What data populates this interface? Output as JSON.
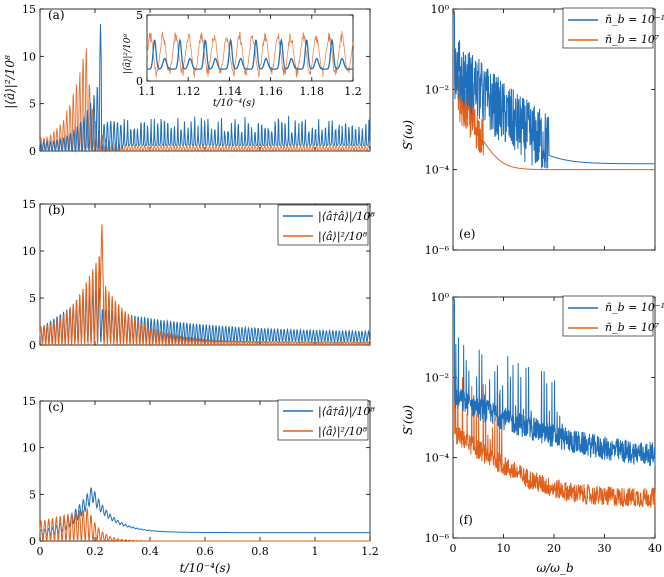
{
  "colors": {
    "blue": "#1f6fba",
    "orange": "#e0601c",
    "axis": "#000000"
  },
  "chart_data": [
    {
      "id": "a",
      "type": "line",
      "panel_label": "(a)",
      "ylabel": "|⟨â⟩|²/10⁸",
      "xlim": [
        0,
        1.2
      ],
      "ylim": [
        0,
        15
      ],
      "yticks": [
        "0",
        "5",
        "10",
        "15"
      ],
      "series": [
        {
          "name": "orange",
          "color": "orange",
          "description": "oscillation growing to ~12 near t=0.17, then decaying to ~0.5 by t=0.3",
          "peak_t": 0.17,
          "peak_value": 12
        },
        {
          "name": "blue",
          "color": "blue",
          "description": "oscillation reaching ~13 near t=0.22, then sustained spikes ~2–4 with baseline ~1",
          "peak_t": 0.22,
          "peak_value": 13.4
        }
      ],
      "inset": {
        "type": "line",
        "xlim": [
          1.1,
          1.2
        ],
        "ylim": [
          0,
          5
        ],
        "xticks": [
          "1.1",
          "1.12",
          "1.14",
          "1.16",
          "1.18",
          "1.2"
        ],
        "yticks": [
          "0",
          "5"
        ],
        "xlabel": "t/10⁻⁴(s)",
        "ylabel": "|⟨â⟩|²/10⁸",
        "series": [
          {
            "name": "blue",
            "color": "blue",
            "description": "periodic spikes ~3 with baseline ~1"
          },
          {
            "name": "orange",
            "color": "orange",
            "description": "thin noisy oscillation 0–4"
          }
        ]
      }
    },
    {
      "id": "b",
      "type": "line",
      "panel_label": "(b)",
      "xlim": [
        0,
        1.2
      ],
      "ylim": [
        0,
        15
      ],
      "yticks": [
        "0",
        "5",
        "10",
        "15"
      ],
      "legend": [
        "|⟨â†â⟩|/10⁸",
        "|⟨â⟩|²/10⁸"
      ],
      "legend_position": "top-right",
      "series": [
        {
          "name": "|⟨â†â⟩|/10⁸",
          "color": "blue",
          "description": "growing oscillation to ~6 near t=0.22, then decaying oscillations around 1"
        },
        {
          "name": "|⟨â⟩|²/10⁸",
          "color": "orange",
          "description": "spike to 13.3 at t=0.22, decaying oscillation to ~0.5 by t=0.9"
        }
      ]
    },
    {
      "id": "c",
      "type": "line",
      "panel_label": "(c)",
      "xlim": [
        0,
        1.2
      ],
      "ylim": [
        0,
        15
      ],
      "yticks": [
        "0",
        "5",
        "10",
        "15"
      ],
      "xticks": [
        "0",
        "0.2",
        "0.4",
        "0.6",
        "0.8",
        "1",
        "1.2"
      ],
      "xlabel": "t/10⁻⁴(s)",
      "legend": [
        "|⟨â†â⟩|/10⁸",
        "|⟨â⟩|²/10⁸"
      ],
      "legend_position": "top-right",
      "series": [
        {
          "name": "|⟨â†â⟩|/10⁸",
          "color": "blue",
          "description": "rises to ~5.9 at t=0.19, settles to ~0.9"
        },
        {
          "name": "|⟨â⟩|²/10⁸",
          "color": "orange",
          "description": "oscillation up to ~3.5, decays to 0 by t=0.3"
        }
      ]
    },
    {
      "id": "e",
      "type": "line",
      "panel_label": "(e)",
      "ylabel": "S′(ω)",
      "yscale": "log",
      "ylim": [
        1e-06,
        1
      ],
      "xlim": [
        0,
        40
      ],
      "yticks": [
        "10⁻⁶",
        "10⁻⁴",
        "10⁻²",
        "10⁰"
      ],
      "legend": [
        "n̄_b = 10⁻¹",
        "n̄_b = 10⁷"
      ],
      "legend_position": "top-right",
      "series": [
        {
          "name": "n̄_b = 10⁻¹",
          "color": "blue",
          "description": "noisy spectrum from ~1 at ω=0 decaying to ~1.4e-4 at ω/ω_b=40"
        },
        {
          "name": "n̄_b = 10⁷",
          "color": "orange",
          "description": "spectrum decaying smoothly to ~1e-4 at ω/ω_b=40"
        }
      ]
    },
    {
      "id": "f",
      "type": "line",
      "panel_label": "(f)",
      "ylabel": "S′(ω)",
      "yscale": "log",
      "ylim": [
        1e-06,
        1
      ],
      "xlim": [
        0,
        40
      ],
      "yticks": [
        "10⁻⁶",
        "10⁻⁴",
        "10⁻²",
        "10⁰"
      ],
      "xticks": [
        "0",
        "10",
        "20",
        "30",
        "40"
      ],
      "xlabel": "ω/ω_b",
      "legend": [
        "n̄_b = 10⁻¹",
        "n̄_b = 10⁷"
      ],
      "legend_position": "top-right",
      "series": [
        {
          "name": "n̄_b = 10⁻¹",
          "color": "blue",
          "description": "spiky spectrum ~1e-2 decaying to ~1e-4 at ω/ω_b=40"
        },
        {
          "name": "n̄_b = 10⁷",
          "color": "orange",
          "description": "spikes then decay to ~1e-5 at ω/ω_b=40"
        }
      ]
    }
  ]
}
